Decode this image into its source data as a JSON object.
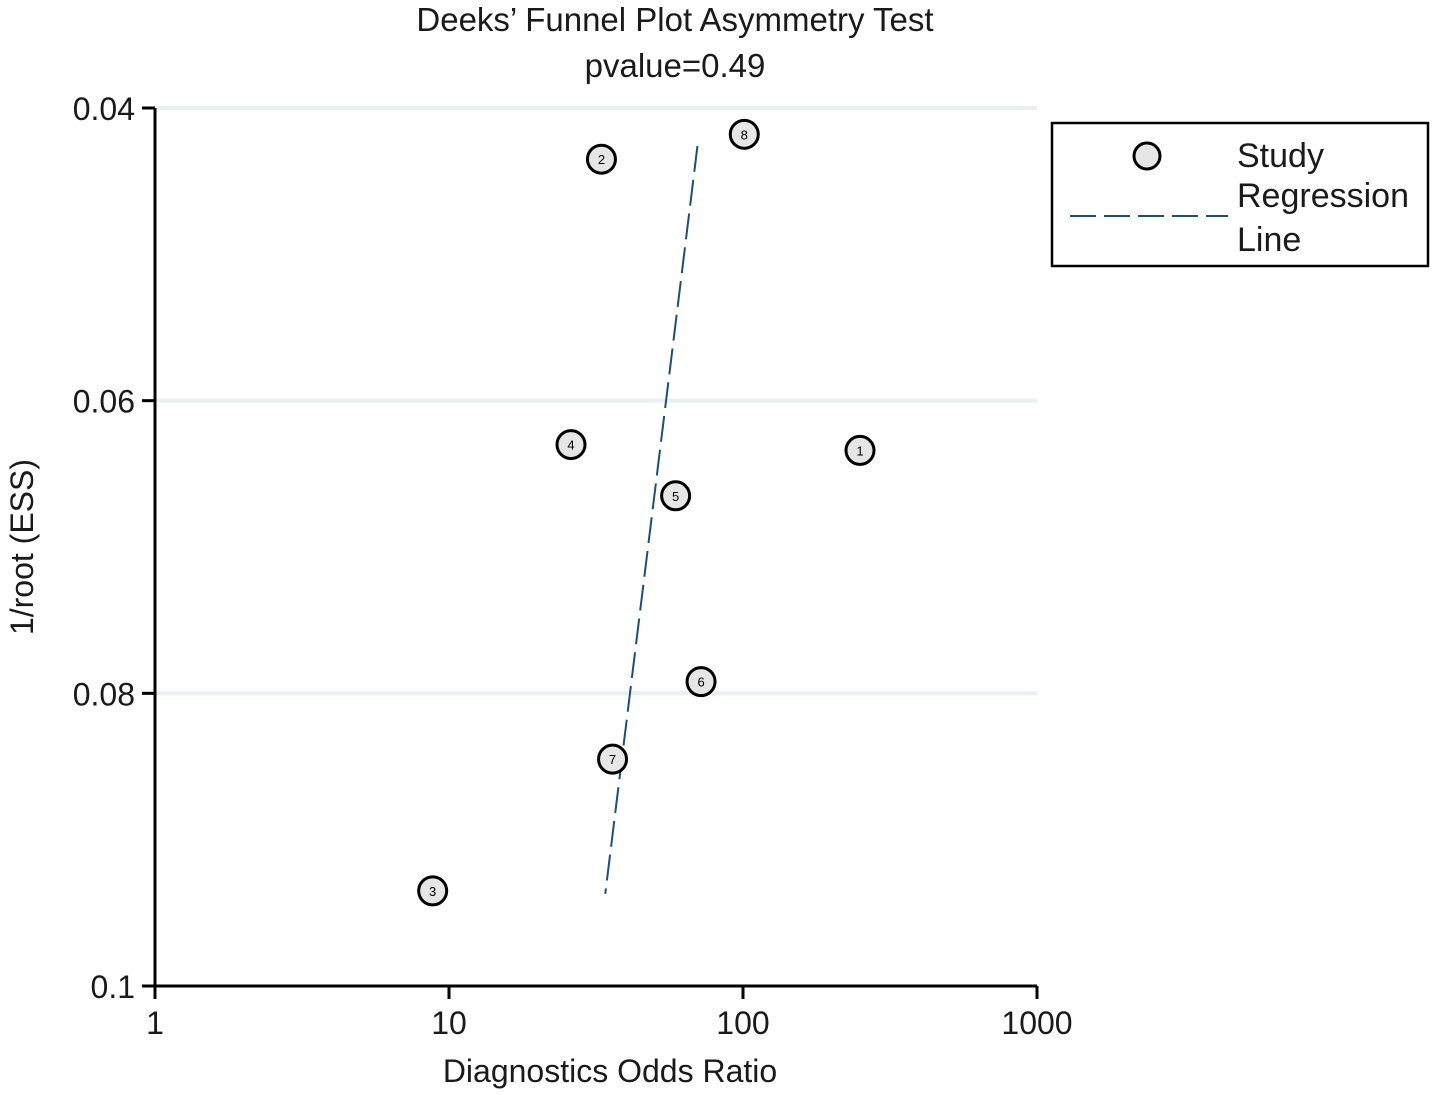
{
  "chart_data": {
    "type": "scatter",
    "title": "Deeks’ Funnel Plot Asymmetry Test",
    "subtitle": "pvalue=0.49",
    "xlabel": "Diagnostics Odds Ratio",
    "ylabel": "1/root (ESS)",
    "x_scale": "log",
    "xlim": [
      1,
      1000
    ],
    "ylim": [
      0.04,
      0.1
    ],
    "y_reversed": true,
    "x_ticks": [
      1,
      10,
      100,
      1000
    ],
    "x_tick_labels": [
      "1",
      "10",
      "100",
      "1000"
    ],
    "y_ticks": [
      0.04,
      0.06,
      0.08,
      0.1
    ],
    "y_tick_labels": [
      "0.04",
      "0.06",
      "0.08",
      "0.1"
    ],
    "grid": true,
    "legend_position": "right",
    "legend": {
      "study_label": "Study",
      "regression_label_line1": "Regression",
      "regression_label_line2": "Line"
    },
    "series": [
      {
        "name": "Study",
        "points": [
          {
            "label": "1",
            "x": 250,
            "y": 0.0634
          },
          {
            "label": "2",
            "x": 33,
            "y": 0.0435
          },
          {
            "label": "3",
            "x": 8.8,
            "y": 0.0935
          },
          {
            "label": "4",
            "x": 26,
            "y": 0.063
          },
          {
            "label": "5",
            "x": 59,
            "y": 0.0665
          },
          {
            "label": "6",
            "x": 72,
            "y": 0.0792
          },
          {
            "label": "7",
            "x": 36,
            "y": 0.0845
          },
          {
            "label": "8",
            "x": 101,
            "y": 0.0418
          }
        ]
      },
      {
        "name": "Regression Line",
        "line": [
          {
            "x": 70,
            "y": 0.0426
          },
          {
            "x": 34,
            "y": 0.0937
          }
        ]
      }
    ],
    "colors": {
      "marker_fill": "#e6e6e6",
      "marker_stroke": "#000000",
      "regression": "#1f4e79",
      "grid": "#e8f0f4",
      "axis": "#000000"
    }
  }
}
